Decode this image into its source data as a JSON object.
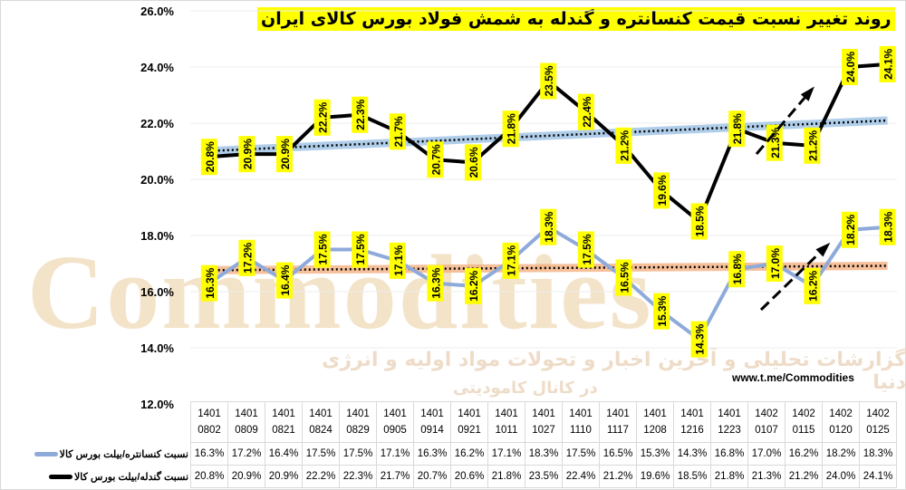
{
  "chart_data": {
    "type": "line",
    "title": "روند تغییر نسبت قیمت کنسانتره و گندله به شمش فولاد بورس کالای ایران",
    "categories": [
      "1401 0802",
      "1401 0809",
      "1401 0821",
      "1401 0824",
      "1401 0829",
      "1401 0905",
      "1401 0914",
      "1401 0921",
      "1401 1011",
      "1401 1027",
      "1401 1110",
      "1401 1117",
      "1401 1208",
      "1401 1216",
      "1401 1223",
      "1402 0107",
      "1402 0115",
      "1402 0120",
      "1402 0125"
    ],
    "series": [
      {
        "name": "نسبت کنسانتره/بیلت بورس کالا",
        "color": "#8eaadb",
        "trend_color": "#f4b183",
        "values": [
          16.3,
          17.2,
          16.4,
          17.5,
          17.5,
          17.1,
          16.3,
          16.2,
          17.1,
          18.3,
          17.5,
          16.5,
          15.3,
          14.3,
          16.8,
          17.0,
          16.2,
          18.2,
          18.3
        ]
      },
      {
        "name": "نسبت گندله/بیلت بورس کالا",
        "color": "#000000",
        "trend_color": "#9dc3e6",
        "values": [
          20.8,
          20.9,
          20.9,
          22.2,
          22.3,
          21.7,
          20.7,
          20.6,
          21.8,
          23.5,
          22.4,
          21.2,
          19.6,
          18.5,
          21.8,
          21.3,
          21.2,
          24.0,
          24.1
        ]
      }
    ],
    "yticks": [
      "12.0%",
      "14.0%",
      "16.0%",
      "18.0%",
      "20.0%",
      "22.0%",
      "24.0%",
      "26.0%"
    ],
    "ylim": [
      12,
      26
    ],
    "trendlines": true,
    "data_labels_bg": "#ffff00",
    "legend": "data-table"
  },
  "watermark": {
    "brand": "Commodities",
    "line1": "گزارشات تحلیلی و آخرین اخبار و تحولات مواد اولیه و انرژی دنیا",
    "line2": "در کانال کامودیتی"
  },
  "url": "www.t.me/Commodities"
}
